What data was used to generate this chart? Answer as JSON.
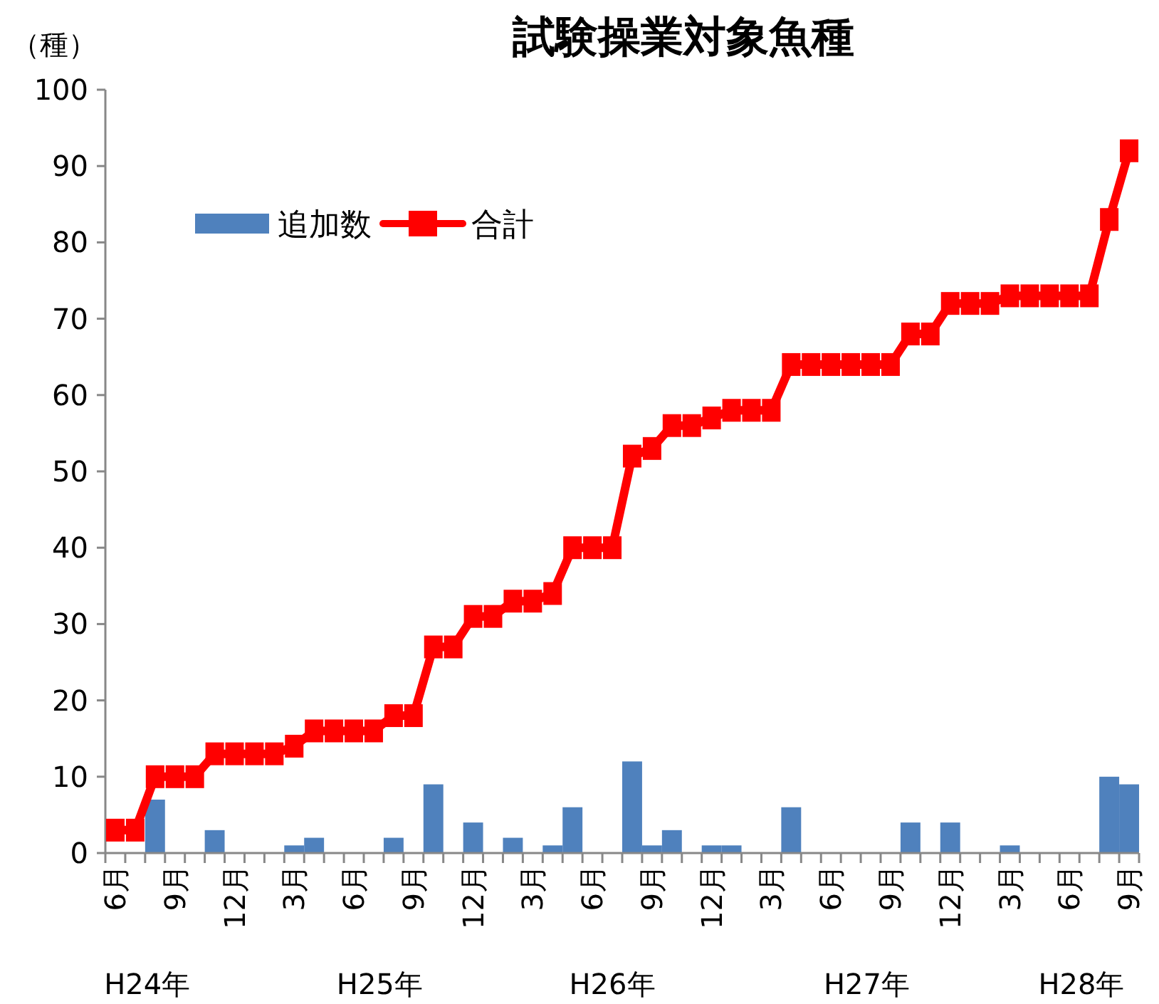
{
  "chart_data": {
    "type": "bar",
    "title": "試験操業対象魚種",
    "ylabel": "（種）",
    "categories": [
      "6月",
      null,
      null,
      "9月",
      null,
      null,
      "12月",
      null,
      null,
      "3月",
      null,
      null,
      "6月",
      null,
      null,
      "9月",
      null,
      null,
      "12月",
      null,
      null,
      "3月",
      null,
      null,
      "6月",
      null,
      null,
      "9月",
      null,
      null,
      "12月",
      null,
      null,
      "3月",
      null,
      null,
      "6月",
      null,
      null,
      "9月",
      null,
      null,
      "12月",
      null,
      null,
      "3月",
      null,
      null,
      "6月",
      null,
      null,
      "9月"
    ],
    "series": [
      {
        "name": "追加数",
        "color": "#4f81bd",
        "values": [
          null,
          0,
          7,
          0,
          0,
          3,
          0,
          0,
          0,
          1,
          2,
          0,
          0,
          0,
          2,
          0,
          9,
          0,
          4,
          0,
          2,
          0,
          1,
          6,
          0,
          0,
          12,
          1,
          3,
          0,
          1,
          1,
          0,
          0,
          6,
          0,
          0,
          0,
          0,
          0,
          4,
          0,
          4,
          0,
          0,
          1,
          0,
          0,
          0,
          0,
          10,
          9
        ]
      },
      {
        "name": "合計",
        "type": "line",
        "color": "#ff0000",
        "marker": "square",
        "values": [
          3,
          3,
          10,
          10,
          10,
          13,
          13,
          13,
          13,
          14,
          16,
          16,
          16,
          16,
          18,
          18,
          27,
          27,
          31,
          31,
          33,
          33,
          34,
          40,
          40,
          40,
          52,
          53,
          56,
          56,
          57,
          58,
          58,
          58,
          64,
          64,
          64,
          64,
          64,
          64,
          68,
          68,
          72,
          72,
          72,
          73,
          73,
          73,
          73,
          73,
          83,
          92
        ]
      }
    ],
    "ylim": [
      0,
      100
    ],
    "yticks": [
      0,
      10,
      20,
      30,
      40,
      50,
      60,
      70,
      80,
      90,
      100
    ],
    "grid": false,
    "legend": "top left",
    "annotations": [
      "H24年",
      "H25年",
      "H26年",
      "H27年",
      "H28年"
    ]
  }
}
